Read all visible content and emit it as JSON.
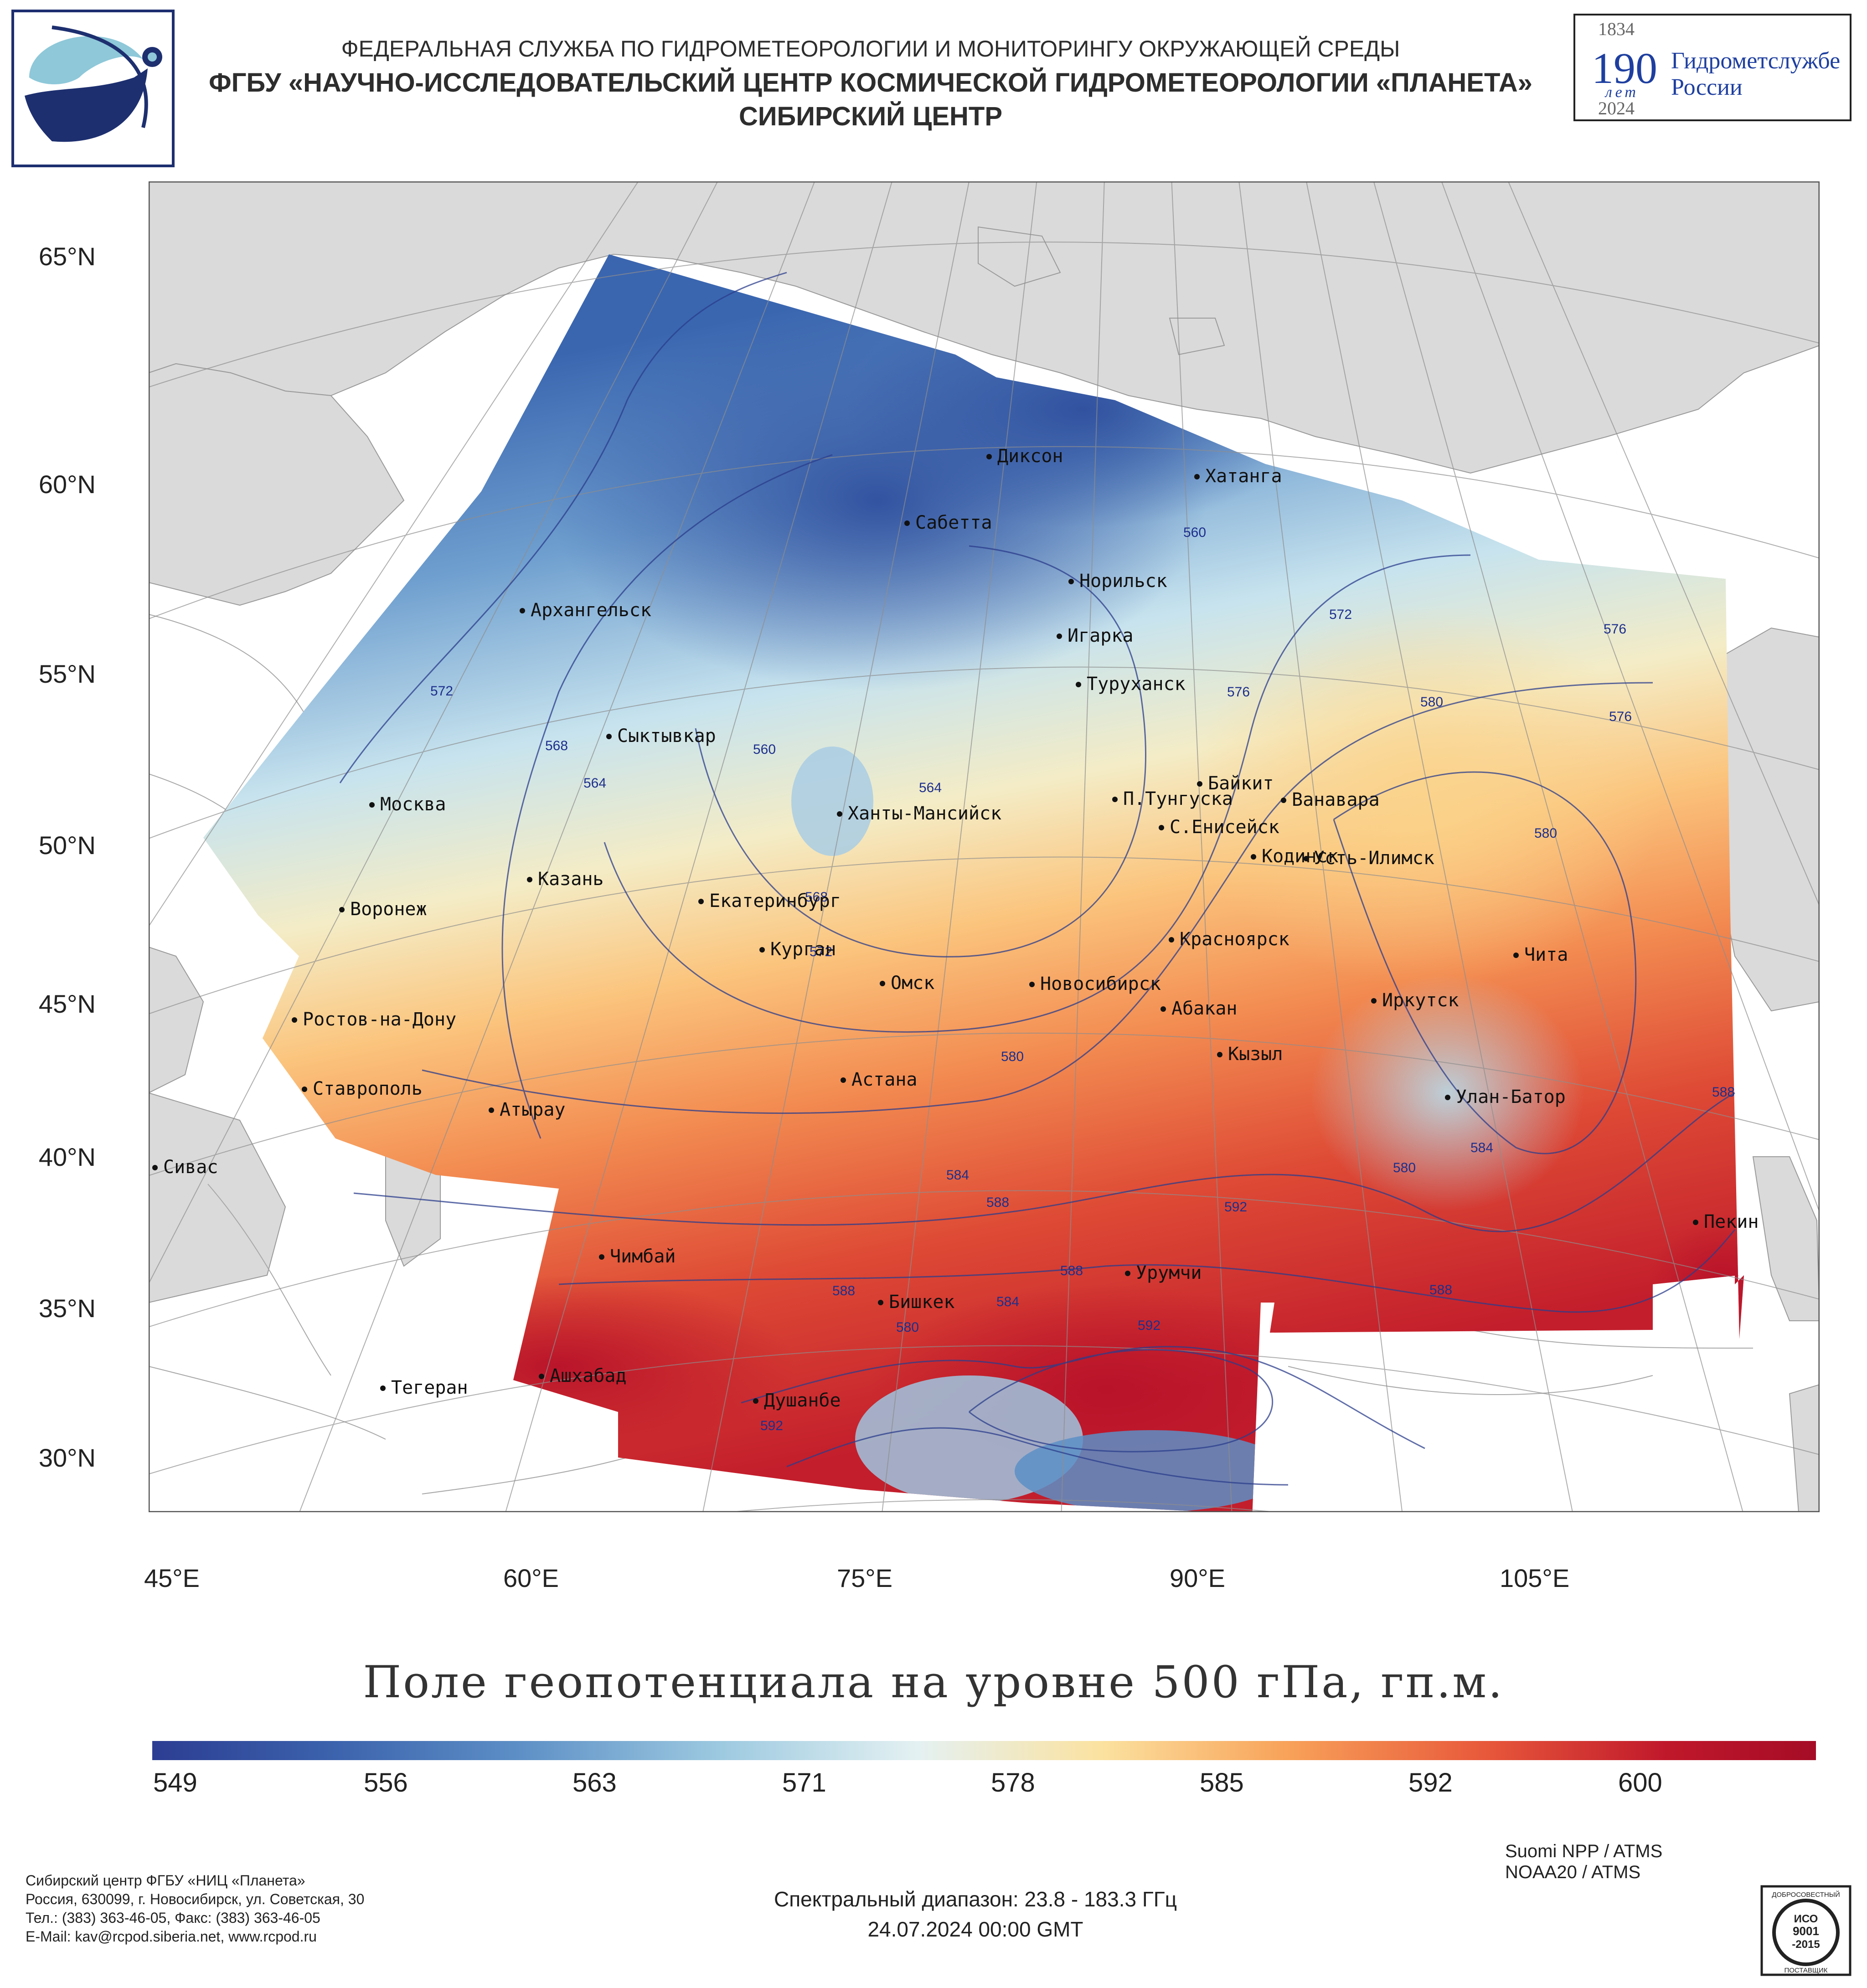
{
  "header": {
    "line1": "ФЕДЕРАЛЬНАЯ СЛУЖБА ПО ГИДРОМЕТЕОРОЛОГИИ И МОНИТОРИНГУ ОКРУЖАЮЩЕЙ СРЕДЫ",
    "line2": "ФГБУ «НАУЧНО-ИССЛЕДОВАТЕЛЬСКИЙ ЦЕНТР КОСМИЧЕСКОЙ ГИДРОМЕТЕОРОЛОГИИ «ПЛАНЕТА»",
    "line3": "СИБИРСКИЙ ЦЕНТР"
  },
  "anniversary": {
    "year_start": "1834",
    "number": "190",
    "word_years": "лет",
    "text1": "Гидрометслужбе",
    "text2": "России",
    "year_end": "2024"
  },
  "axes": {
    "lat_labels": [
      "65°N",
      "60°N",
      "55°N",
      "50°N",
      "45°N",
      "40°N",
      "35°N",
      "30°N"
    ],
    "lon_labels": [
      "45°E",
      "60°E",
      "75°E",
      "90°E",
      "105°E"
    ]
  },
  "cities": [
    {
      "name": "Диксон"
    },
    {
      "name": "Хатанга"
    },
    {
      "name": "Сабетта"
    },
    {
      "name": "Норильск"
    },
    {
      "name": "Архангельск"
    },
    {
      "name": "Игарка"
    },
    {
      "name": "Туруханск"
    },
    {
      "name": "Сыктывкар"
    },
    {
      "name": "Байкит"
    },
    {
      "name": "П.Тунгуска"
    },
    {
      "name": "Ванавара"
    },
    {
      "name": "Москва"
    },
    {
      "name": "Ханты-Мансийск"
    },
    {
      "name": "С.Енисейск"
    },
    {
      "name": "Кодинск"
    },
    {
      "name": "Усть-Илимск"
    },
    {
      "name": "Казань"
    },
    {
      "name": "Екатеринбург"
    },
    {
      "name": "Воронеж"
    },
    {
      "name": "Красноярск"
    },
    {
      "name": "Курган"
    },
    {
      "name": "Чита"
    },
    {
      "name": "Омск"
    },
    {
      "name": "Новосибирск"
    },
    {
      "name": "Иркутск"
    },
    {
      "name": "Ростов-на-Дону"
    },
    {
      "name": "Абакан"
    },
    {
      "name": "Кызыл"
    },
    {
      "name": "Астана"
    },
    {
      "name": "Ставрополь"
    },
    {
      "name": "Улан-Батор"
    },
    {
      "name": "Атырау"
    },
    {
      "name": "Сивас"
    },
    {
      "name": "Пекин"
    },
    {
      "name": "Чимбай"
    },
    {
      "name": "Урумчи"
    },
    {
      "name": "Бишкек"
    },
    {
      "name": "Ашхабад"
    },
    {
      "name": "Тегеран"
    },
    {
      "name": "Душанбе"
    }
  ],
  "contour_labels": [
    "572",
    "568",
    "564",
    "560",
    "564",
    "568",
    "572",
    "560",
    "572",
    "576",
    "580",
    "576",
    "580",
    "580",
    "584",
    "580",
    "584",
    "588",
    "588",
    "588",
    "592",
    "588",
    "584",
    "580",
    "592",
    "592",
    "588",
    "576"
  ],
  "title": "Поле геопотенциала на уровне 500 гПа, гп.м.",
  "colorbar": {
    "ticks": [
      "549",
      "556",
      "563",
      "571",
      "578",
      "585",
      "592",
      "600"
    ],
    "colors": [
      "#2c3d92",
      "#3c63ad",
      "#5d8fc6",
      "#9cc9e0",
      "#e4f1f2",
      "#fbe2a0",
      "#f8a35a",
      "#e8593b",
      "#c0182b",
      "#a50c26"
    ]
  },
  "footer": {
    "org_lines": [
      "Сибирский центр ФГБУ «НИЦ «Планета»",
      "Россия, 630099, г. Новосибирск, ул. Советская, 30",
      "Тел.: (383) 363-46-05, Факс: (383) 363-46-05",
      "E-Mail: kav@rcpod.siberia.net, www.rcpod.ru"
    ],
    "spectral": "Спектральный диапазон: 23.8 - 183.3 ГГц",
    "datetime": "24.07.2024 00:00 GMT",
    "sat1": "Suomi NPP / ATMS",
    "sat2": "NOAA20 / ATMS",
    "iso_top": "ДОБРОСОВЕСТНЫЙ",
    "iso_mid1": "ИСО",
    "iso_mid2": "9001",
    "iso_mid3": "-2015",
    "iso_bottom": "ПОСТАВЩИК"
  }
}
